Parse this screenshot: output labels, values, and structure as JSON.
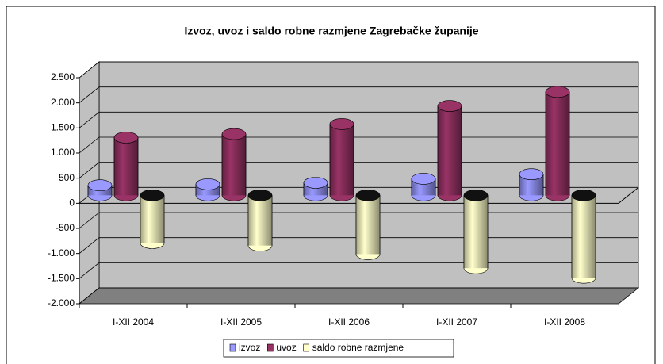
{
  "chart_data": {
    "type": "bar3d",
    "title": "Izvoz, uvoz i saldo robne razmjene Zagrebačke županije",
    "categories": [
      "I-XII 2004",
      "I-XII 2005",
      "I-XII 2006",
      "I-XII 2007",
      "I-XII 2008"
    ],
    "series": [
      {
        "name": "izvoz",
        "color": "#9999ff",
        "values": [
          200,
          220,
          250,
          330,
          420
        ]
      },
      {
        "name": "uvoz",
        "color": "#993366",
        "values": [
          1150,
          1220,
          1420,
          1780,
          2060
        ]
      },
      {
        "name": "saldo robne razmjene",
        "color": "#ffffcc",
        "values": [
          -950,
          -1000,
          -1170,
          -1450,
          -1640
        ]
      }
    ],
    "ylim": [
      -2000,
      2500
    ],
    "yticks": [
      {
        "value": -2000,
        "label": "-2.000"
      },
      {
        "value": -1500,
        "label": "-1.500"
      },
      {
        "value": -1000,
        "label": "-1.000"
      },
      -500,
      0,
      500,
      {
        "value": 1000,
        "label": "1.000"
      },
      {
        "value": 1500,
        "label": "1.500"
      },
      {
        "value": 2000,
        "label": "2.000"
      },
      {
        "value": 2500,
        "label": "2.500"
      }
    ],
    "grid": true,
    "legend": "bottom"
  }
}
